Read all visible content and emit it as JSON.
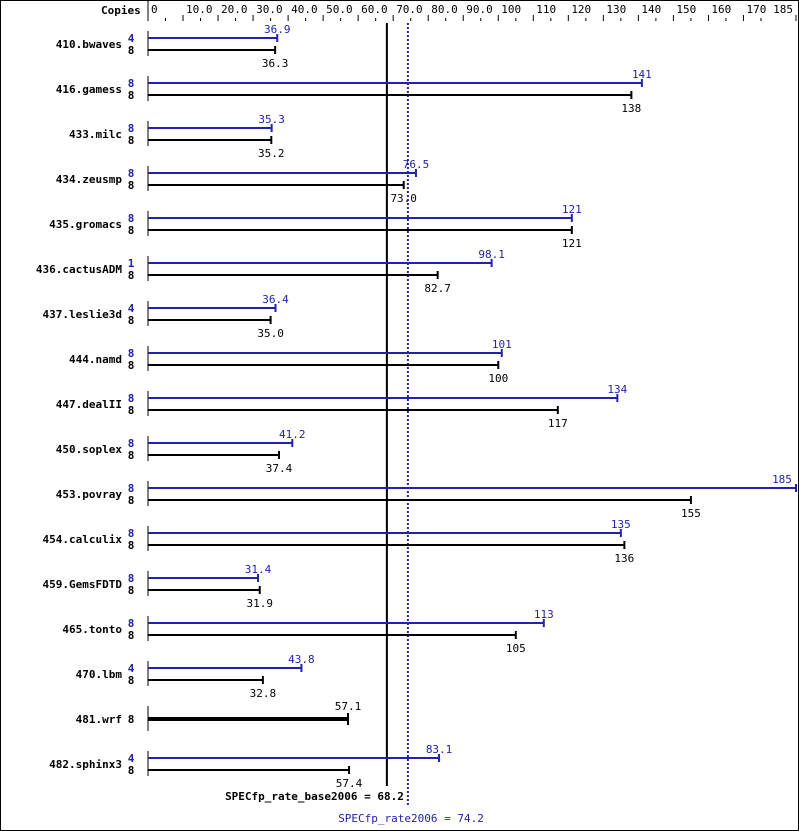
{
  "chart_data": {
    "type": "bar",
    "orientation": "horizontal",
    "copies_label": "Copies",
    "xlim": [
      0,
      185
    ],
    "ticks": [
      "0",
      "10.0",
      "20.0",
      "30.0",
      "40.0",
      "50.0",
      "60.0",
      "70.0",
      "80.0",
      "90.0",
      "100",
      "110",
      "120",
      "130",
      "140",
      "150",
      "160",
      "170",
      "185"
    ],
    "tick_values": [
      0,
      10,
      20,
      30,
      40,
      50,
      60,
      70,
      80,
      90,
      100,
      110,
      120,
      130,
      140,
      150,
      160,
      170,
      185
    ],
    "colors": {
      "peak": "#2222aa",
      "base": "#000000"
    },
    "categories": [
      "410.bwaves",
      "416.gamess",
      "433.milc",
      "434.zeusmp",
      "435.gromacs",
      "436.cactusADM",
      "437.leslie3d",
      "444.namd",
      "447.dealII",
      "450.soplex",
      "453.povray",
      "454.calculix",
      "459.GemsFDTD",
      "465.tonto",
      "470.lbm",
      "481.wrf",
      "482.sphinx3"
    ],
    "series": [
      {
        "key": "peak",
        "copies": [
          "4",
          "8",
          "8",
          "8",
          "8",
          "1",
          "4",
          "8",
          "8",
          "8",
          "8",
          "8",
          "8",
          "8",
          "4",
          null,
          "4"
        ],
        "values": [
          36.9,
          141,
          35.3,
          76.5,
          121,
          98.1,
          36.4,
          101,
          134,
          41.2,
          185,
          135,
          31.4,
          113,
          43.8,
          null,
          83.1
        ],
        "labels": [
          "36.9",
          "141",
          "35.3",
          "76.5",
          "121",
          "98.1",
          "36.4",
          "101",
          "134",
          "41.2",
          "185",
          "135",
          "31.4",
          "113",
          "43.8",
          null,
          "83.1"
        ]
      },
      {
        "key": "base",
        "copies": [
          "8",
          "8",
          "8",
          "8",
          "8",
          "8",
          "8",
          "8",
          "8",
          "8",
          "8",
          "8",
          "8",
          "8",
          "8",
          "8",
          "8"
        ],
        "values": [
          36.3,
          138,
          35.2,
          73.0,
          121,
          82.7,
          35.0,
          100,
          117,
          37.4,
          155,
          136,
          31.9,
          105,
          32.8,
          57.1,
          57.4
        ],
        "labels": [
          "36.3",
          "138",
          "35.2",
          "73.0",
          "121",
          "82.7",
          "35.0",
          "100",
          "117",
          "37.4",
          "155",
          "136",
          "31.9",
          "105",
          "32.8",
          "57.1",
          "57.4"
        ]
      }
    ],
    "reference_lines": [
      {
        "key": "base",
        "label": "SPECfp_rate_base2006 = 68.2",
        "value": 68.2
      },
      {
        "key": "peak",
        "label": "SPECfp_rate2006 = 74.2",
        "value": 74.2
      }
    ]
  }
}
